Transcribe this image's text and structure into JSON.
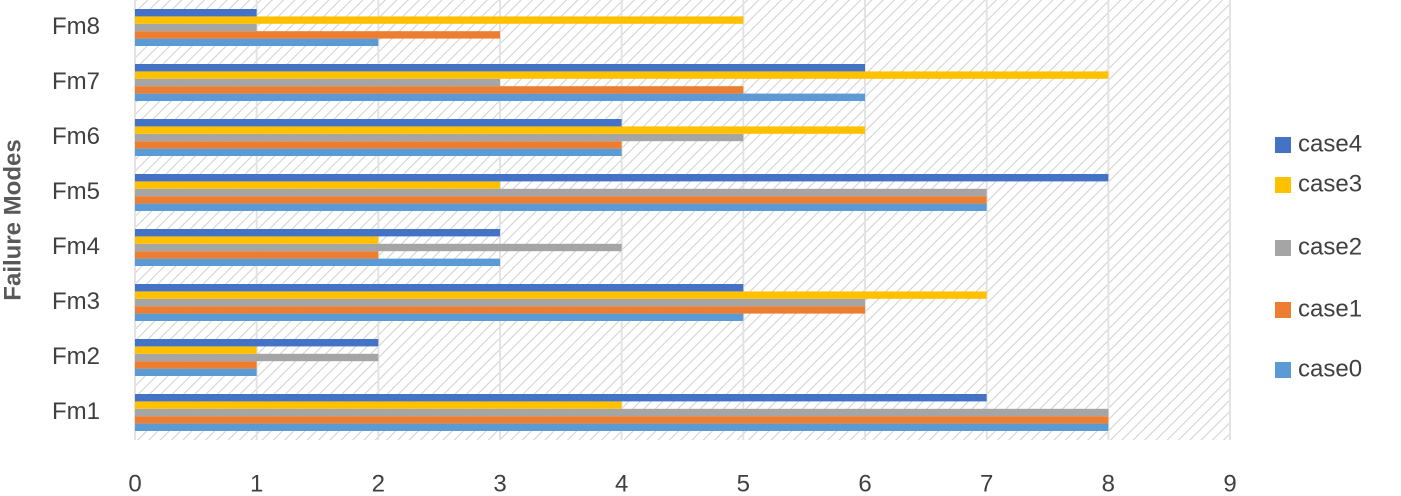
{
  "chart_data": {
    "type": "hbar",
    "y_label": "Failure Modes",
    "categories": [
      "Fm1",
      "Fm2",
      "Fm3",
      "Fm4",
      "Fm5",
      "Fm6",
      "Fm7",
      "Fm8"
    ],
    "series": [
      {
        "name": "case0",
        "color": "#5b9bd5",
        "values": [
          8,
          1,
          5,
          3,
          7,
          4,
          6,
          2
        ]
      },
      {
        "name": "case1",
        "color": "#ed7d31",
        "values": [
          8,
          1,
          6,
          2,
          7,
          4,
          5,
          3
        ]
      },
      {
        "name": "case2",
        "color": "#a5a5a5",
        "values": [
          8,
          2,
          6,
          4,
          7,
          5,
          3,
          1
        ]
      },
      {
        "name": "case3",
        "color": "#ffc000",
        "values": [
          4,
          1,
          7,
          2,
          3,
          6,
          8,
          5
        ]
      },
      {
        "name": "case4",
        "color": "#4472c4",
        "values": [
          7,
          2,
          5,
          3,
          8,
          4,
          6,
          1
        ]
      }
    ],
    "xlim": [
      0,
      9
    ],
    "xticks": [
      0,
      1,
      2,
      3,
      4,
      5,
      6,
      7,
      8,
      9
    ],
    "grid": true,
    "legend": "right"
  }
}
